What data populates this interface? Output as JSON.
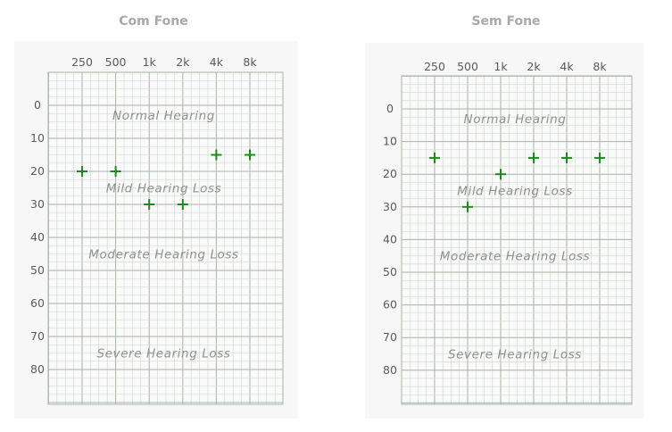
{
  "charts": [
    {
      "title": "Com Fone",
      "chart_data": {
        "type": "scatter",
        "title": "Com Fone",
        "x_categories": [
          "250",
          "500",
          "1k",
          "2k",
          "4k",
          "8k"
        ],
        "y_ticks": [
          "0",
          "10",
          "20",
          "30",
          "40",
          "50",
          "60",
          "70",
          "80"
        ],
        "ylim": [
          -10,
          90
        ],
        "y_inverted": true,
        "zones": [
          "Normal Hearing",
          "Mild Hearing Loss",
          "Moderate Hearing Loss",
          "Severe Hearing Loss"
        ],
        "zone_levels": [
          3,
          25,
          45,
          75
        ],
        "points": [
          {
            "x": "250",
            "y": 20
          },
          {
            "x": "500",
            "y": 20
          },
          {
            "x": "1k",
            "y": 30
          },
          {
            "x": "2k",
            "y": 30
          },
          {
            "x": "4k",
            "y": 15
          },
          {
            "x": "8k",
            "y": 15
          }
        ],
        "marker": "+",
        "marker_color": "#1e8a1e",
        "grid": true
      }
    },
    {
      "title": "Sem Fone",
      "chart_data": {
        "type": "scatter",
        "title": "Sem Fone",
        "x_categories": [
          "250",
          "500",
          "1k",
          "2k",
          "4k",
          "8k"
        ],
        "y_ticks": [
          "0",
          "10",
          "20",
          "30",
          "40",
          "50",
          "60",
          "70",
          "80"
        ],
        "ylim": [
          -10,
          90
        ],
        "y_inverted": true,
        "zones": [
          "Normal Hearing",
          "Mild Hearing Loss",
          "Moderate Hearing Loss",
          "Severe Hearing Loss"
        ],
        "zone_levels": [
          3,
          25,
          45,
          75
        ],
        "points": [
          {
            "x": "250",
            "y": 15
          },
          {
            "x": "500",
            "y": 30
          },
          {
            "x": "1k",
            "y": 20
          },
          {
            "x": "2k",
            "y": 15
          },
          {
            "x": "4k",
            "y": 15
          },
          {
            "x": "8k",
            "y": 15
          }
        ],
        "marker": "+",
        "marker_color": "#1e8a1e",
        "grid": true
      }
    }
  ],
  "colors": {
    "panel_bg": "#f7f7f7",
    "grid_minor": "#cfd6cf",
    "grid_major": "#a8b3a8",
    "label": "#5a5a5a",
    "zone_text": "#8a958a",
    "marker": "#1e8a1e"
  }
}
